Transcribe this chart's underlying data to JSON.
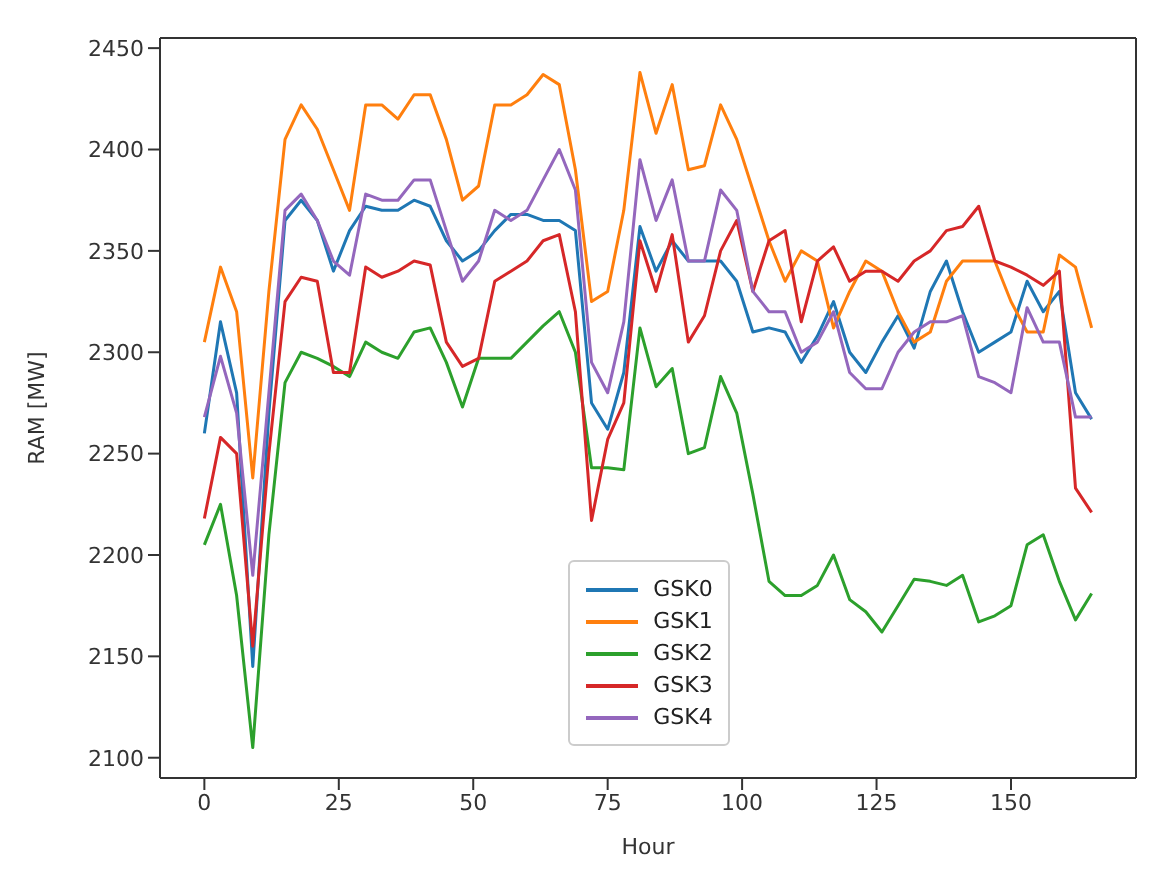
{
  "chart_data": {
    "type": "line",
    "xlabel": "Hour",
    "ylabel": "RAM [MW]",
    "x": [
      0,
      3,
      6,
      9,
      12,
      15,
      18,
      21,
      24,
      27,
      30,
      33,
      36,
      39,
      42,
      45,
      48,
      51,
      54,
      57,
      60,
      63,
      66,
      69,
      72,
      75,
      78,
      81,
      84,
      87,
      90,
      93,
      96,
      99,
      102,
      105,
      108,
      111,
      114,
      117,
      120,
      123,
      126,
      129,
      132,
      135,
      138,
      141,
      144,
      147,
      150,
      153,
      156,
      159,
      162,
      165
    ],
    "xlim": [
      -8.25,
      173.25
    ],
    "xticks": [
      0,
      25,
      50,
      75,
      100,
      125,
      150
    ],
    "ylim": [
      2090,
      2455
    ],
    "yticks": [
      2100,
      2150,
      2200,
      2250,
      2300,
      2350,
      2400,
      2450
    ],
    "grid": false,
    "legend": "bottom",
    "marker": "none",
    "line_style": "solid",
    "series": [
      {
        "name": "GSK0",
        "color": "#1f77b4",
        "values": [
          2260,
          2315,
          2280,
          2145,
          2270,
          2365,
          2375,
          2365,
          2340,
          2360,
          2372,
          2370,
          2370,
          2375,
          2372,
          2355,
          2345,
          2350,
          2360,
          2368,
          2368,
          2365,
          2365,
          2360,
          2275,
          2262,
          2290,
          2362,
          2340,
          2355,
          2345,
          2345,
          2345,
          2335,
          2310,
          2312,
          2310,
          2295,
          2308,
          2325,
          2300,
          2290,
          2305,
          2318,
          2302,
          2330,
          2345,
          2320,
          2300,
          2305,
          2310,
          2335,
          2320,
          2330,
          2280,
          2267
        ]
      },
      {
        "name": "GSK1",
        "color": "#ff7f0e",
        "values": [
          2305,
          2342,
          2320,
          2238,
          2330,
          2405,
          2422,
          2410,
          2390,
          2370,
          2422,
          2422,
          2415,
          2427,
          2427,
          2405,
          2375,
          2382,
          2422,
          2422,
          2427,
          2437,
          2432,
          2390,
          2325,
          2330,
          2370,
          2438,
          2408,
          2432,
          2390,
          2392,
          2422,
          2405,
          2380,
          2355,
          2335,
          2350,
          2345,
          2312,
          2330,
          2345,
          2340,
          2320,
          2305,
          2310,
          2335,
          2345,
          2345,
          2345,
          2325,
          2310,
          2310,
          2348,
          2342,
          2312
        ]
      },
      {
        "name": "GSK2",
        "color": "#2ca02c",
        "values": [
          2205,
          2225,
          2180,
          2105,
          2210,
          2285,
          2300,
          2297,
          2293,
          2288,
          2305,
          2300,
          2297,
          2310,
          2312,
          2295,
          2273,
          2297,
          2297,
          2297,
          2305,
          2313,
          2320,
          2300,
          2243,
          2243,
          2242,
          2312,
          2283,
          2292,
          2250,
          2253,
          2288,
          2270,
          2230,
          2187,
          2180,
          2180,
          2185,
          2200,
          2178,
          2172,
          2162,
          2175,
          2188,
          2187,
          2185,
          2190,
          2167,
          2170,
          2175,
          2205,
          2210,
          2187,
          2168,
          2181
        ]
      },
      {
        "name": "GSK3",
        "color": "#d62728",
        "values": [
          2218,
          2258,
          2250,
          2155,
          2250,
          2325,
          2337,
          2335,
          2290,
          2290,
          2342,
          2337,
          2340,
          2345,
          2343,
          2305,
          2293,
          2297,
          2335,
          2340,
          2345,
          2355,
          2358,
          2320,
          2217,
          2257,
          2275,
          2355,
          2330,
          2358,
          2305,
          2318,
          2350,
          2365,
          2330,
          2355,
          2360,
          2315,
          2345,
          2352,
          2335,
          2340,
          2340,
          2335,
          2345,
          2350,
          2360,
          2362,
          2372,
          2345,
          2342,
          2338,
          2333,
          2340,
          2233,
          2221
        ]
      },
      {
        "name": "GSK4",
        "color": "#9467bd",
        "values": [
          2268,
          2298,
          2270,
          2190,
          2280,
          2370,
          2378,
          2365,
          2345,
          2338,
          2378,
          2375,
          2375,
          2385,
          2385,
          2360,
          2335,
          2345,
          2370,
          2365,
          2370,
          2385,
          2400,
          2380,
          2295,
          2280,
          2315,
          2395,
          2365,
          2385,
          2345,
          2345,
          2380,
          2370,
          2330,
          2320,
          2320,
          2300,
          2305,
          2320,
          2290,
          2282,
          2282,
          2300,
          2310,
          2315,
          2315,
          2318,
          2288,
          2285,
          2280,
          2322,
          2305,
          2305,
          2268,
          2268
        ]
      }
    ]
  }
}
